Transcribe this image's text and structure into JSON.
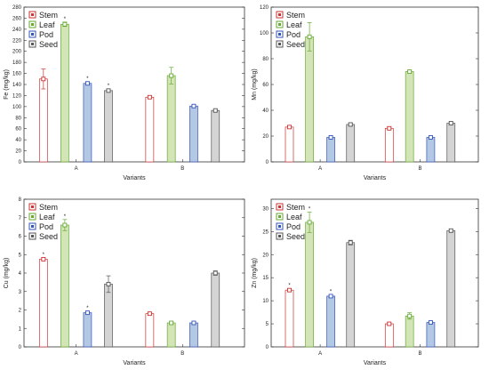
{
  "colors": {
    "Stem": "#cc3333",
    "Leaf": "#66aa33",
    "Pod": "#3355bb",
    "Seed": "#555555",
    "Stem_fill": "#ffffff",
    "Leaf_fill": "#d3e4b6",
    "Pod_fill": "#b3c8e4",
    "Seed_fill": "#d4d4d4"
  },
  "chart_data": [
    {
      "type": "bar",
      "xlabel": "Variants",
      "ylabel": "Fe (mg/kg)",
      "categories": [
        "A",
        "B"
      ],
      "ylim": [
        0,
        280
      ],
      "yticks": [
        0,
        20,
        40,
        60,
        80,
        100,
        120,
        140,
        160,
        180,
        200,
        220,
        240,
        260,
        280
      ],
      "legend": "top-left",
      "series": [
        {
          "name": "Stem",
          "values": [
            150,
            117
          ],
          "errors": [
            18,
            2
          ],
          "stars": [
            "",
            ""
          ]
        },
        {
          "name": "Leaf",
          "values": [
            249,
            156
          ],
          "errors": [
            4,
            15
          ],
          "stars": [
            "*",
            ""
          ]
        },
        {
          "name": "Pod",
          "values": [
            142,
            101
          ],
          "errors": [
            3,
            2
          ],
          "stars": [
            "*",
            ""
          ]
        },
        {
          "name": "Seed",
          "values": [
            129,
            93
          ],
          "errors": [
            3,
            2
          ],
          "stars": [
            "*",
            ""
          ]
        }
      ]
    },
    {
      "type": "bar",
      "xlabel": "Variants",
      "ylabel": "Mn (mg/kg)",
      "categories": [
        "A",
        "B"
      ],
      "ylim": [
        0,
        120
      ],
      "yticks": [
        0,
        20,
        40,
        60,
        80,
        100,
        120
      ],
      "legend": "top-left",
      "series": [
        {
          "name": "Stem",
          "values": [
            27,
            26
          ],
          "errors": [
            1,
            1
          ],
          "stars": [
            "",
            ""
          ]
        },
        {
          "name": "Leaf",
          "values": [
            97,
            70
          ],
          "errors": [
            11,
            1
          ],
          "stars": [
            "",
            ""
          ]
        },
        {
          "name": "Pod",
          "values": [
            19,
            19
          ],
          "errors": [
            1,
            1
          ],
          "stars": [
            "",
            ""
          ]
        },
        {
          "name": "Seed",
          "values": [
            29,
            30
          ],
          "errors": [
            1,
            1
          ],
          "stars": [
            "",
            ""
          ]
        }
      ]
    },
    {
      "type": "bar",
      "xlabel": "Variants",
      "ylabel": "Cu (mg/kg)",
      "categories": [
        "A",
        "B"
      ],
      "ylim": [
        0,
        8
      ],
      "yticks": [
        0,
        1,
        2,
        3,
        4,
        5,
        6,
        7,
        8
      ],
      "legend": "top-left",
      "series": [
        {
          "name": "Stem",
          "values": [
            4.75,
            1.8
          ],
          "errors": [
            0.08,
            0.05
          ],
          "stars": [
            "*",
            ""
          ]
        },
        {
          "name": "Leaf",
          "values": [
            6.6,
            1.3
          ],
          "errors": [
            0.3,
            0.08
          ],
          "stars": [
            "*",
            ""
          ]
        },
        {
          "name": "Pod",
          "values": [
            1.85,
            1.3
          ],
          "errors": [
            0.08,
            0.05
          ],
          "stars": [
            "*",
            ""
          ]
        },
        {
          "name": "Seed",
          "values": [
            3.4,
            4.0
          ],
          "errors": [
            0.45,
            0.12
          ],
          "stars": [
            "",
            ""
          ]
        }
      ]
    },
    {
      "type": "bar",
      "xlabel": "Variants",
      "ylabel": "Zn (mg/kg)",
      "categories": [
        "A",
        "B"
      ],
      "ylim": [
        0,
        32
      ],
      "yticks": [
        0,
        5,
        10,
        15,
        20,
        25,
        30
      ],
      "legend": "top-left",
      "series": [
        {
          "name": "Stem",
          "values": [
            12.3,
            5.0
          ],
          "errors": [
            0.3,
            0.2
          ],
          "stars": [
            "*",
            ""
          ]
        },
        {
          "name": "Leaf",
          "values": [
            27,
            6.7
          ],
          "errors": [
            2.2,
            0.7
          ],
          "stars": [
            "*",
            ""
          ]
        },
        {
          "name": "Pod",
          "values": [
            11.0,
            5.3
          ],
          "errors": [
            0.3,
            0.2
          ],
          "stars": [
            "*",
            ""
          ]
        },
        {
          "name": "Seed",
          "values": [
            22.6,
            25.2
          ],
          "errors": [
            0.5,
            0.3
          ],
          "stars": [
            "",
            ""
          ]
        }
      ]
    }
  ]
}
